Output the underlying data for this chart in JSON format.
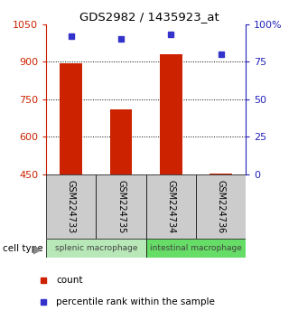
{
  "title": "GDS2982 / 1435923_at",
  "samples": [
    "GSM224733",
    "GSM224735",
    "GSM224734",
    "GSM224736"
  ],
  "count_values": [
    893,
    710,
    928,
    454
  ],
  "percentile_values": [
    92,
    90,
    93,
    80
  ],
  "y_min": 450,
  "y_max": 1050,
  "y_ticks": [
    450,
    600,
    750,
    900,
    1050
  ],
  "y_right_ticks": [
    0,
    25,
    50,
    75,
    100
  ],
  "y_right_tick_labels": [
    "0",
    "25",
    "50",
    "75",
    "100%"
  ],
  "dotted_lines": [
    600,
    750,
    900
  ],
  "bar_color": "#cc2200",
  "dot_color": "#3333cc",
  "cell_types": [
    {
      "label": "splenic macrophage",
      "indices": [
        0,
        1
      ],
      "color": "#b8e8b8"
    },
    {
      "label": "intestinal macrophage",
      "indices": [
        2,
        3
      ],
      "color": "#66dd66"
    }
  ],
  "sample_box_color": "#cccccc",
  "left_axis_color": "#cc2200",
  "right_axis_color": "#2222bb"
}
